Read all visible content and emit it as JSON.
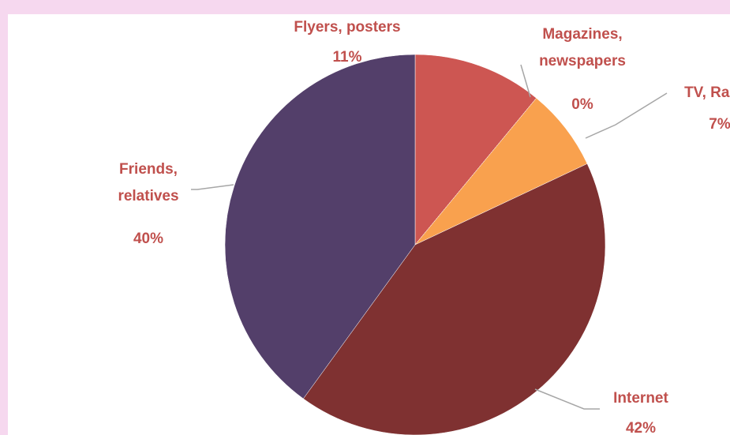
{
  "chart_data": {
    "type": "pie",
    "categories": [
      "Flyers, posters",
      "Magazines, newspapers",
      "TV, Radio",
      "Internet",
      "Friends, relatives"
    ],
    "values": [
      11,
      0,
      7,
      42,
      40
    ],
    "value_labels": [
      "11%",
      "0%",
      "7%",
      "42%",
      "40%"
    ],
    "colors": [
      "#cd5652",
      "#9bbb59",
      "#f9a14e",
      "#7f3131",
      "#533f6a"
    ]
  }
}
